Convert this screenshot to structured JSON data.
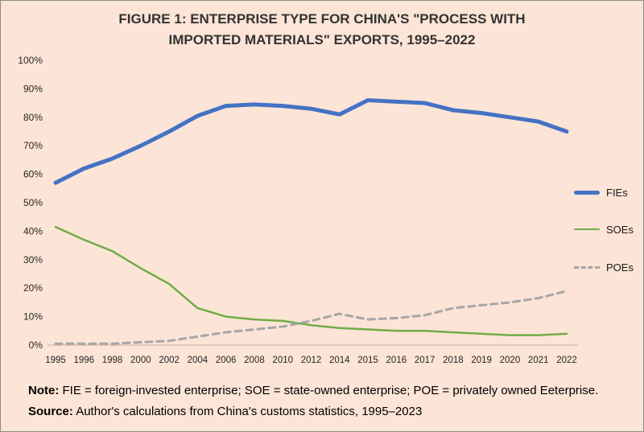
{
  "figure": {
    "title_line1": "FIGURE 1: ENTERPRISE TYPE FOR CHINA'S \"PROCESS WITH",
    "title_line2": "IMPORTED MATERIALS\" EXPORTS, 1995–2022"
  },
  "note": {
    "note_label": "Note:",
    "note_text": " FIE = foreign-invested enterprise; SOE = state-owned enterprise; POE = privately owned Eeterprise. ",
    "source_label": "Source:",
    "source_text": " Author's calculations from China's customs statistics, 1995–2023"
  },
  "colors": {
    "background": "#fce4d6",
    "axis": "#c9afa0",
    "title_text": "#333333"
  },
  "chart_data": {
    "type": "line",
    "title": "FIGURE 1: ENTERPRISE TYPE FOR CHINA'S \"PROCESS WITH IMPORTED MATERIALS\" EXPORTS, 1995–2022",
    "xlabel": "",
    "ylabel": "",
    "ylim": [
      0,
      100
    ],
    "y_ticks": [
      0,
      10,
      20,
      30,
      40,
      50,
      60,
      70,
      80,
      90,
      100
    ],
    "grid": false,
    "legend_position": "right",
    "categories": [
      "1995",
      "1996",
      "1998",
      "2000",
      "2002",
      "2004",
      "2006",
      "2008",
      "2010",
      "2012",
      "2014",
      "2015",
      "2016",
      "2017",
      "2018",
      "2019",
      "2020",
      "2021",
      "2022"
    ],
    "series": [
      {
        "name": "FIEs",
        "color": "#4472c4",
        "width": 5,
        "dash": null,
        "values": [
          57,
          62,
          65.5,
          70,
          75,
          80.5,
          84,
          84.5,
          84,
          83,
          81,
          86,
          85.5,
          85,
          82.5,
          81.5,
          80,
          78.5,
          75
        ]
      },
      {
        "name": "SOEs",
        "color": "#70ad47",
        "width": 2.5,
        "dash": null,
        "values": [
          41.5,
          37,
          33,
          27,
          21.5,
          13,
          10,
          9,
          8.5,
          7,
          6,
          5.5,
          5,
          5,
          4.5,
          4,
          3.5,
          3.5,
          4
        ]
      },
      {
        "name": "POEs",
        "color": "#a6a6a6",
        "width": 3,
        "dash": "8 6",
        "values": [
          0.5,
          0.5,
          0.5,
          1,
          1.5,
          3,
          4.5,
          5.5,
          6.5,
          8.5,
          11,
          9,
          9.5,
          10.5,
          13,
          14,
          15,
          16.5,
          19
        ]
      }
    ]
  }
}
